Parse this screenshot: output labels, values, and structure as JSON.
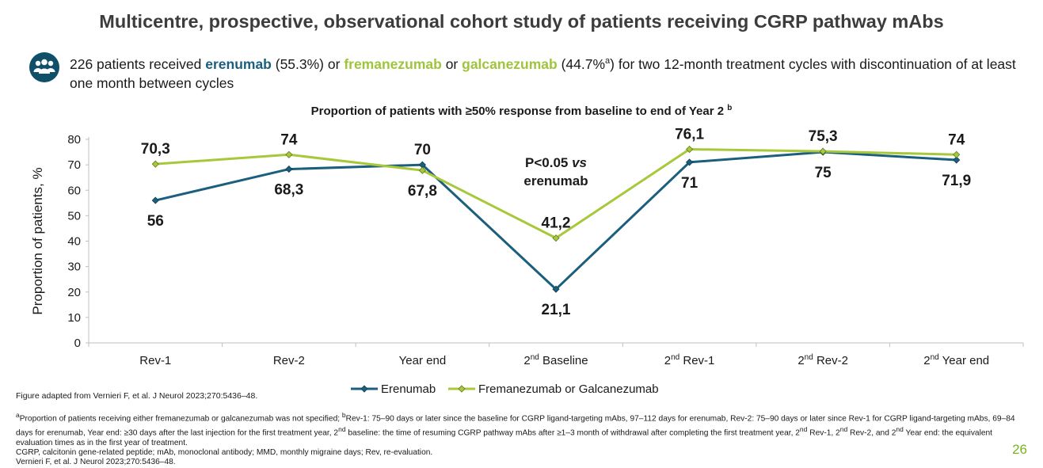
{
  "title": "Multicentre, prospective, observational cohort study of patients receiving CGRP pathway mAbs",
  "intro": {
    "icon": "people-group-icon",
    "part1": "226 patients received ",
    "drug1": "erenumab",
    "part2": " (55.3%) or ",
    "drug2": "fremanezumab",
    "part3": " or ",
    "drug3": "galcanezumab",
    "part4": " (44.7%",
    "sup": "a",
    "part5": ") for two 12-month treatment cycles with discontinuation of at least one month between cycles"
  },
  "chart_title": {
    "text": "Proportion of patients with ≥50% response from baseline to end of Year 2",
    "sup": "b"
  },
  "chart_data": {
    "type": "line",
    "ylabel": "Proportion of patients, %",
    "ylim": [
      0,
      80
    ],
    "yticks": [
      "0",
      "10",
      "20",
      "30",
      "40",
      "50",
      "60",
      "70",
      "80"
    ],
    "categories": [
      {
        "pre": "",
        "sup": "",
        "post": "Rev-1"
      },
      {
        "pre": "",
        "sup": "",
        "post": "Rev-2"
      },
      {
        "pre": "",
        "sup": "",
        "post": "Year end"
      },
      {
        "pre": "2",
        "sup": "nd",
        "post": " Baseline"
      },
      {
        "pre": "2",
        "sup": "nd",
        "post": " Rev-1"
      },
      {
        "pre": "2",
        "sup": "nd",
        "post": " Rev-2"
      },
      {
        "pre": "2",
        "sup": "nd",
        "post": " Year end"
      }
    ],
    "series": [
      {
        "name": "Erenumab",
        "color": "#1b5f7c",
        "values": [
          56,
          68.3,
          70,
          21.1,
          71,
          75,
          71.9
        ],
        "labels": [
          "56",
          "68,3",
          "70",
          "21,1",
          "71",
          "75",
          "71,9"
        ]
      },
      {
        "name": "Fremanezumab or Galcanezumab",
        "color": "#a8c83c",
        "values": [
          70.3,
          74,
          67.8,
          41.2,
          76.1,
          75.3,
          74
        ],
        "labels": [
          "70,3",
          "74",
          "67,8",
          "41,2",
          "76,1",
          "75,3",
          "74"
        ]
      }
    ],
    "annotation": {
      "line1": "P<0.05 ",
      "line1_italic": "vs",
      "line2": "erenumab"
    },
    "legend_position": "bottom",
    "grid": false
  },
  "figure_source": "Figure adapted from Vernieri F, et al. J Neurol 2023;270:5436–48.",
  "footnotes": {
    "a_sup": "a",
    "a_text": "Proportion of patients receiving either fremanezumab or galcanezumab was not specified; ",
    "b_sup": "b",
    "b_text1": "Rev-1: 75–90 days or later since the baseline for CGRP ligand-targeting mAbs, 97–112 days for erenumab, Rev-2: 75–90 days or later since Rev-1 for CGRP ligand-targeting mAbs, 69–84 days for erenumab, Year end: ≥30 days after the last injection for the first treatment year, 2",
    "nd1": "nd",
    "b_text2": " baseline: the time of resuming CGRP pathway mAbs after ≥1–3 month of withdrawal after completing the first treatment year, 2",
    "nd2": "nd",
    "b_text3": " Rev-1, 2",
    "nd3": "nd",
    "b_text4": " Rev-2, and 2",
    "nd4": "nd",
    "b_text5": " Year end: the equivalent evaluation times as in the first year of treatment.",
    "abbrev": "CGRP, calcitonin gene-related peptide; mAb, monoclonal antibody; MMD, monthly migraine days; Rev, re-evaluation.",
    "ref": "Vernieri F, et al. J Neurol 2023;270:5436–48."
  },
  "page_number": "26"
}
